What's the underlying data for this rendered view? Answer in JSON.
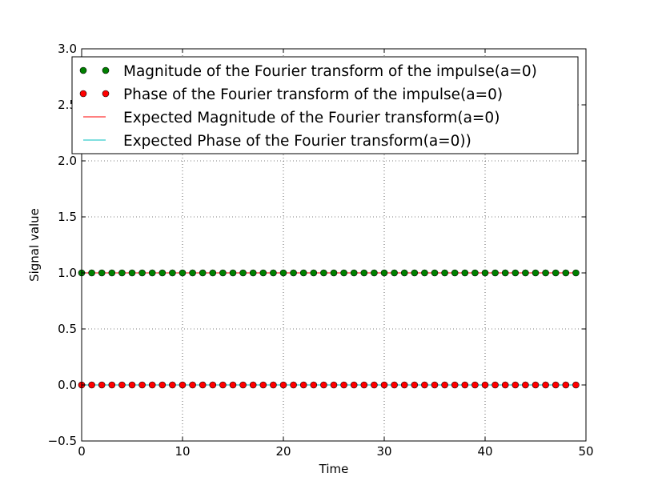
{
  "chart_data": {
    "type": "scatter",
    "xlabel": "Time",
    "ylabel": "Signal value",
    "xlim": [
      0,
      50
    ],
    "ylim": [
      -0.5,
      3.0
    ],
    "xticks": [
      0,
      10,
      20,
      30,
      40,
      50
    ],
    "yticks": [
      -0.5,
      0.0,
      0.5,
      1.0,
      1.5,
      2.0,
      2.5,
      3.0
    ],
    "xtick_labels": [
      "0",
      "10",
      "20",
      "30",
      "40",
      "50"
    ],
    "ytick_labels": [
      "−0.5",
      "0.0",
      "0.5",
      "1.0",
      "1.5",
      "2.0",
      "2.5",
      "3.0"
    ],
    "grid": true,
    "grid_style": "dotted",
    "legend_position": "upper-left",
    "x": [
      0,
      1,
      2,
      3,
      4,
      5,
      6,
      7,
      8,
      9,
      10,
      11,
      12,
      13,
      14,
      15,
      16,
      17,
      18,
      19,
      20,
      21,
      22,
      23,
      24,
      25,
      26,
      27,
      28,
      29,
      30,
      31,
      32,
      33,
      34,
      35,
      36,
      37,
      38,
      39,
      40,
      41,
      42,
      43,
      44,
      45,
      46,
      47,
      48,
      49
    ],
    "series": [
      {
        "name": "Magnitude of the Fourier transform of the impulse(a=0)",
        "style": "markers",
        "color": "#008000",
        "values": [
          1,
          1,
          1,
          1,
          1,
          1,
          1,
          1,
          1,
          1,
          1,
          1,
          1,
          1,
          1,
          1,
          1,
          1,
          1,
          1,
          1,
          1,
          1,
          1,
          1,
          1,
          1,
          1,
          1,
          1,
          1,
          1,
          1,
          1,
          1,
          1,
          1,
          1,
          1,
          1,
          1,
          1,
          1,
          1,
          1,
          1,
          1,
          1,
          1,
          1
        ]
      },
      {
        "name": "Phase of the Fourier transform of the impulse(a=0)",
        "style": "markers",
        "color": "#ff0000",
        "values": [
          0,
          0,
          0,
          0,
          0,
          0,
          0,
          0,
          0,
          0,
          0,
          0,
          0,
          0,
          0,
          0,
          0,
          0,
          0,
          0,
          0,
          0,
          0,
          0,
          0,
          0,
          0,
          0,
          0,
          0,
          0,
          0,
          0,
          0,
          0,
          0,
          0,
          0,
          0,
          0,
          0,
          0,
          0,
          0,
          0,
          0,
          0,
          0,
          0,
          0
        ]
      },
      {
        "name": "Expected Magnitude of the Fourier transform(a=0)",
        "style": "line",
        "color": "#ff0000",
        "values": [
          1,
          1,
          1,
          1,
          1,
          1,
          1,
          1,
          1,
          1,
          1,
          1,
          1,
          1,
          1,
          1,
          1,
          1,
          1,
          1,
          1,
          1,
          1,
          1,
          1,
          1,
          1,
          1,
          1,
          1,
          1,
          1,
          1,
          1,
          1,
          1,
          1,
          1,
          1,
          1,
          1,
          1,
          1,
          1,
          1,
          1,
          1,
          1,
          1,
          1
        ]
      },
      {
        "name": "Expected Phase of the Fourier transform(a=0))",
        "style": "line",
        "color": "#00bfbf",
        "values": [
          0,
          0,
          0,
          0,
          0,
          0,
          0,
          0,
          0,
          0,
          0,
          0,
          0,
          0,
          0,
          0,
          0,
          0,
          0,
          0,
          0,
          0,
          0,
          0,
          0,
          0,
          0,
          0,
          0,
          0,
          0,
          0,
          0,
          0,
          0,
          0,
          0,
          0,
          0,
          0,
          0,
          0,
          0,
          0,
          0,
          0,
          0,
          0,
          0,
          0
        ]
      }
    ]
  }
}
